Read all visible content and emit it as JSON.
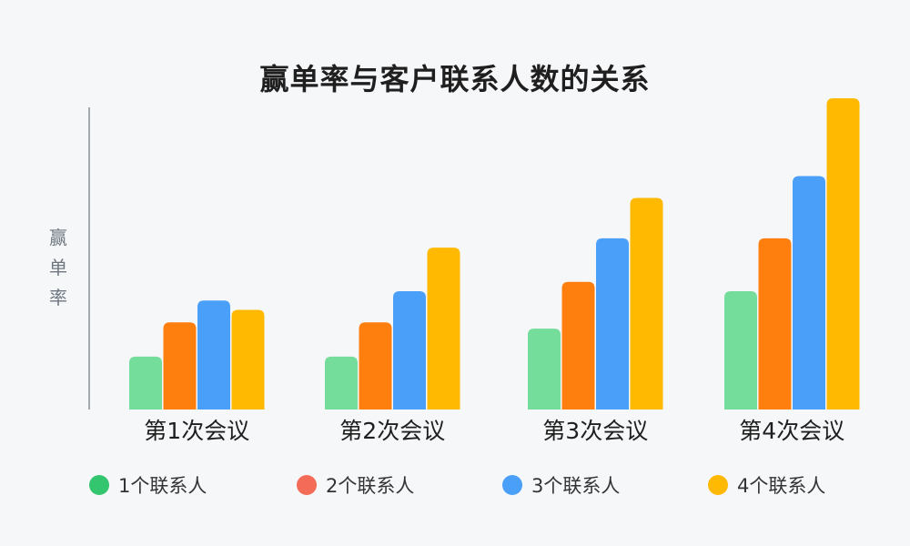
{
  "chart_data": {
    "type": "bar",
    "title": "赢单率与客户联系人数的关系",
    "ylabel": "赢\n单\n率",
    "xlabel": "",
    "categories": [
      "第1次会议",
      "第2次会议",
      "第3次会议",
      "第4次会议"
    ],
    "ylim": [
      0,
      100
    ],
    "series": [
      {
        "name": "1个联系人",
        "color": "#74dd9b",
        "values": [
          17,
          17,
          26,
          38
        ]
      },
      {
        "name": "2个联系人",
        "color": "#ff7f0e",
        "values": [
          28,
          28,
          41,
          55
        ]
      },
      {
        "name": "3个联系人",
        "color": "#4a9ff8",
        "values": [
          35,
          38,
          55,
          75
        ]
      },
      {
        "name": "4个联系人",
        "color": "#ffb900",
        "values": [
          32,
          52,
          68,
          100
        ]
      }
    ],
    "legend_position": "bottom",
    "grid": false
  },
  "legend": {
    "dot_colors": [
      "#34c66f",
      "#f46b58",
      "#4a9ff8",
      "#ffb900"
    ]
  }
}
